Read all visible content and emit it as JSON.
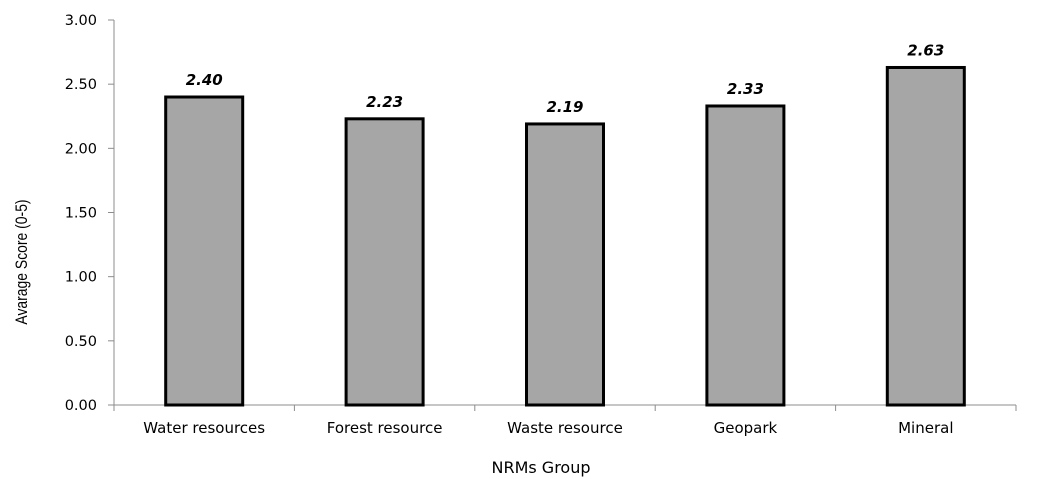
{
  "chart_data": {
    "type": "bar",
    "categories": [
      "Water resources",
      "Forest resource",
      "Waste resource",
      "Geopark",
      "Mineral"
    ],
    "values": [
      2.4,
      2.23,
      2.19,
      2.33,
      2.63
    ],
    "value_labels": [
      "2.40",
      "2.23",
      "2.19",
      "2.33",
      "2.63"
    ],
    "xlabel": "NRMs Group",
    "ylabel": "Avarage Score (0-5)",
    "ylim": [
      0,
      3
    ],
    "yticks": [
      "0.00",
      "0.50",
      "1.00",
      "1.50",
      "2.00",
      "2.50",
      "3.00"
    ],
    "ytick_values": [
      0,
      0.5,
      1,
      1.5,
      2,
      2.5,
      3
    ],
    "grid": false,
    "legend": "none",
    "colors": {
      "bar_fill": "#a6a6a6",
      "bar_stroke": "#000000",
      "axis": "#8c8c8c"
    }
  }
}
